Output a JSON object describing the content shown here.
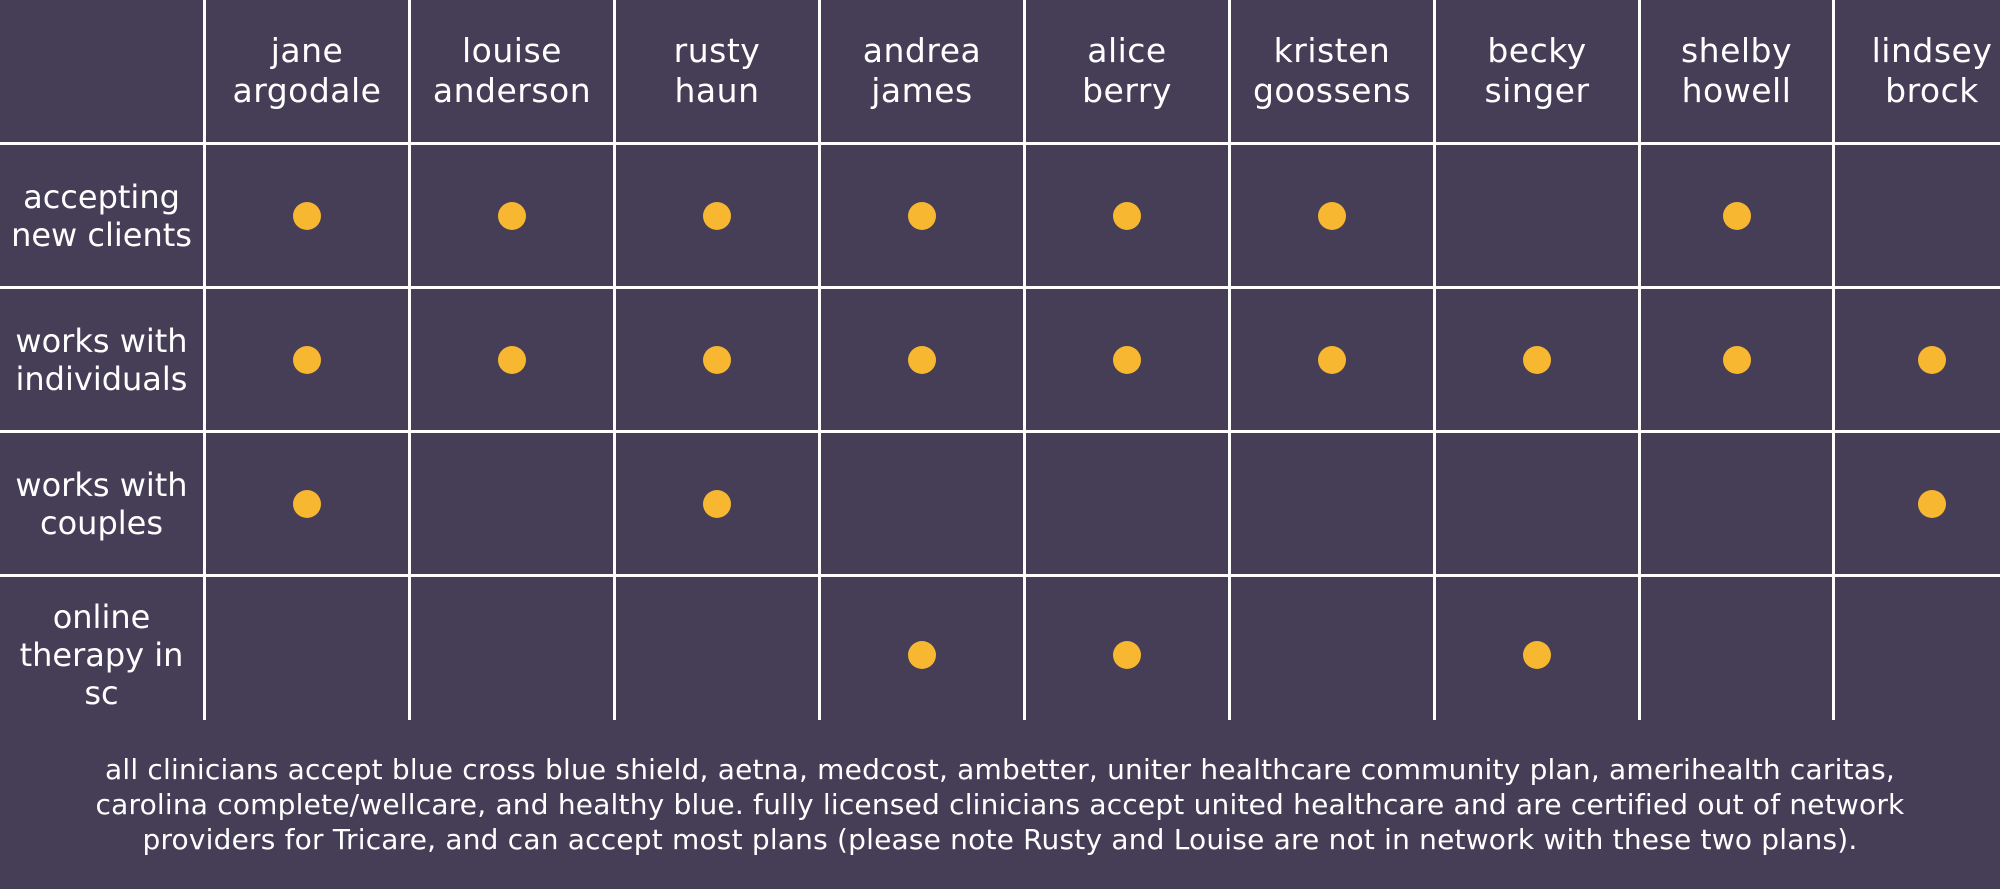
{
  "colors": {
    "background": "#463d57",
    "grid_line": "#ffffff",
    "dot": "#f7b731",
    "text": "#ffffff"
  },
  "table": {
    "columns": [
      "jane\nargodale",
      "louise\nanderson",
      "rusty\nhaun",
      "andrea\njames",
      "alice\nberry",
      "kristen\ngoossens",
      "becky\nsinger",
      "shelby\nhowell",
      "lindsey\nbrock"
    ],
    "rows": [
      {
        "label": "accepting\nnew clients",
        "marks": [
          true,
          true,
          true,
          true,
          true,
          true,
          false,
          true,
          false
        ]
      },
      {
        "label": "works with\nindividuals",
        "marks": [
          true,
          true,
          true,
          true,
          true,
          true,
          true,
          true,
          true
        ]
      },
      {
        "label": "works with\ncouples",
        "marks": [
          true,
          false,
          true,
          false,
          false,
          false,
          false,
          false,
          true
        ]
      },
      {
        "label": "online\ntherapy in\nsc",
        "marks": [
          false,
          false,
          false,
          true,
          true,
          false,
          true,
          false,
          false
        ]
      }
    ]
  },
  "footer": {
    "text": "all clinicians accept blue cross blue shield, aetna, medcost, ambetter, uniter healthcare community plan, amerihealth caritas, carolina complete/wellcare, and healthy blue. fully licensed clinicians accept united healthcare and are certified out of network providers for Tricare, and can accept most plans (please note Rusty and Louise are not in network with these two plans)."
  }
}
